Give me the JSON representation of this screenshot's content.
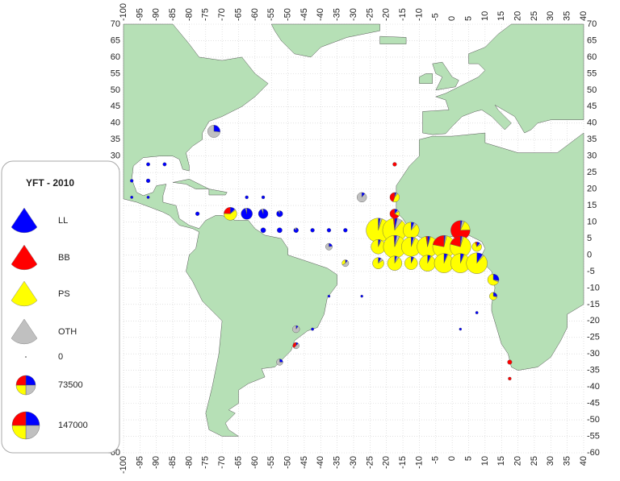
{
  "map": {
    "xticks": [
      -100,
      -95,
      -90,
      -85,
      -80,
      -75,
      -70,
      -65,
      -60,
      -55,
      -50,
      -45,
      -40,
      -35,
      -30,
      -25,
      -20,
      -15,
      -10,
      -5,
      0,
      5,
      10,
      15,
      20,
      25,
      30,
      35,
      40
    ],
    "yticks": [
      70,
      65,
      60,
      55,
      50,
      45,
      40,
      35,
      30,
      25,
      20,
      15,
      10,
      5,
      0,
      -5,
      -10,
      -15,
      -20,
      -25,
      -30,
      -35,
      -40,
      -45,
      -50,
      -55,
      -60
    ],
    "gears": [
      {
        "name": "LL",
        "color": "#0000ff"
      },
      {
        "name": "BB",
        "color": "#ff0000"
      },
      {
        "name": "PS",
        "color": "#ffff00"
      },
      {
        "name": "OTH",
        "color": "#c0c0c0"
      }
    ],
    "pies": [
      {
        "lon": -22.5,
        "lat": 7.5,
        "values": [
          3000,
          0,
          108000,
          3000
        ]
      },
      {
        "lon": -17.5,
        "lat": 7.5,
        "values": [
          4000,
          2000,
          100000,
          8000
        ]
      },
      {
        "lon": -12.5,
        "lat": 7.5,
        "values": [
          3000,
          0,
          45000,
          3000
        ]
      },
      {
        "lon": 2.5,
        "lat": 7.5,
        "values": [
          2000,
          55000,
          13000,
          3000
        ]
      },
      {
        "lon": -17.5,
        "lat": 12.5,
        "values": [
          2000,
          12000,
          3000,
          1000
        ]
      },
      {
        "lon": -17.5,
        "lat": 17.5,
        "values": [
          1000,
          8000,
          8000,
          1000
        ]
      },
      {
        "lon": -22.5,
        "lat": 2.5,
        "values": [
          2000,
          0,
          38000,
          1000
        ]
      },
      {
        "lon": -17.5,
        "lat": 2.5,
        "values": [
          3000,
          1000,
          92000,
          4000
        ]
      },
      {
        "lon": -12.5,
        "lat": 2.5,
        "values": [
          3000,
          0,
          68000,
          2000
        ]
      },
      {
        "lon": -7.5,
        "lat": 2.5,
        "values": [
          3000,
          2000,
          80000,
          1000
        ]
      },
      {
        "lon": -2.5,
        "lat": 2.5,
        "values": [
          2000,
          22000,
          74000,
          2000
        ]
      },
      {
        "lon": 2.5,
        "lat": 2.5,
        "values": [
          2000,
          18000,
          64000,
          2000
        ]
      },
      {
        "lon": 7.5,
        "lat": 2.5,
        "values": [
          2000,
          1000,
          14000,
          1000
        ]
      },
      {
        "lon": -22.5,
        "lat": -2.5,
        "values": [
          2000,
          0,
          21000,
          2000
        ]
      },
      {
        "lon": -17.5,
        "lat": -2.5,
        "values": [
          2000,
          0,
          37000,
          2000
        ]
      },
      {
        "lon": -12.5,
        "lat": -2.5,
        "values": [
          2000,
          0,
          30000,
          500
        ]
      },
      {
        "lon": -7.5,
        "lat": -2.5,
        "values": [
          3000,
          0,
          47000,
          1000
        ]
      },
      {
        "lon": -2.5,
        "lat": -2.5,
        "values": [
          4000,
          0,
          68000,
          1000
        ]
      },
      {
        "lon": 2.5,
        "lat": -2.5,
        "values": [
          4000,
          0,
          68000,
          1000
        ]
      },
      {
        "lon": 7.5,
        "lat": -2.5,
        "values": [
          8000,
          0,
          76000,
          2000
        ]
      },
      {
        "lon": 12.5,
        "lat": -7.5,
        "values": [
          7000,
          0,
          17000,
          1000
        ]
      },
      {
        "lon": 12.5,
        "lat": -12.5,
        "values": [
          3000,
          0,
          8000,
          500
        ]
      },
      {
        "lon": -67.5,
        "lat": 12.5,
        "values": [
          4000,
          8000,
          20000,
          1000
        ]
      },
      {
        "lon": -62.5,
        "lat": 12.5,
        "values": [
          24000,
          0,
          0,
          1000
        ]
      },
      {
        "lon": -57.5,
        "lat": 12.5,
        "values": [
          17000,
          0,
          0,
          1000
        ]
      },
      {
        "lon": -52.5,
        "lat": 12.5,
        "values": [
          7000,
          0,
          0,
          500
        ]
      },
      {
        "lon": -27.5,
        "lat": 17.5,
        "values": [
          2000,
          0,
          0,
          16000
        ]
      },
      {
        "lon": -72.5,
        "lat": 37.5,
        "values": [
          8000,
          0,
          0,
          22000
        ]
      },
      {
        "lon": -47.5,
        "lat": -22.5,
        "values": [
          1000,
          0,
          0,
          9000
        ]
      },
      {
        "lon": -47.5,
        "lat": -27.5,
        "values": [
          1000,
          3000,
          0,
          4000
        ]
      },
      {
        "lon": -52.5,
        "lat": -32.5,
        "values": [
          2000,
          0,
          0,
          6000
        ]
      },
      {
        "lon": -37.5,
        "lat": 2.5,
        "values": [
          2000,
          0,
          0,
          7000
        ]
      },
      {
        "lon": -32.5,
        "lat": -2.5,
        "values": [
          1000,
          0,
          3000,
          5000
        ]
      },
      {
        "lon": 17.5,
        "lat": -32.5,
        "values": [
          0,
          4000,
          0,
          0
        ]
      },
      {
        "lon": 17.5,
        "lat": -37.5,
        "values": [
          0,
          2000,
          0,
          0
        ]
      },
      {
        "lon": -17.5,
        "lat": 27.5,
        "values": [
          0,
          3000,
          0,
          0
        ]
      },
      {
        "lon": -92.5,
        "lat": 27.5,
        "values": [
          2500,
          0,
          0,
          0
        ]
      },
      {
        "lon": -87.5,
        "lat": 27.5,
        "values": [
          2500,
          0,
          0,
          0
        ]
      },
      {
        "lon": -97.5,
        "lat": 22.5,
        "values": [
          2000,
          0,
          0,
          0
        ]
      },
      {
        "lon": -92.5,
        "lat": 22.5,
        "values": [
          3000,
          0,
          0,
          0
        ]
      },
      {
        "lon": -97.5,
        "lat": 17.5,
        "values": [
          1500,
          0,
          0,
          0
        ]
      },
      {
        "lon": -92.5,
        "lat": 17.5,
        "values": [
          1500,
          0,
          0,
          0
        ]
      },
      {
        "lon": -77.5,
        "lat": 12.5,
        "values": [
          3000,
          0,
          0,
          0
        ]
      },
      {
        "lon": -57.5,
        "lat": 7.5,
        "values": [
          5000,
          0,
          0,
          0
        ]
      },
      {
        "lon": -52.5,
        "lat": 7.5,
        "values": [
          5000,
          0,
          0,
          0
        ]
      },
      {
        "lon": -47.5,
        "lat": 7.5,
        "values": [
          4000,
          0,
          0,
          500
        ]
      },
      {
        "lon": -42.5,
        "lat": 7.5,
        "values": [
          3000,
          0,
          0,
          0
        ]
      },
      {
        "lon": -37.5,
        "lat": 7.5,
        "values": [
          3000,
          0,
          0,
          0
        ]
      },
      {
        "lon": -32.5,
        "lat": 7.5,
        "values": [
          3000,
          0,
          0,
          0
        ]
      },
      {
        "lon": -62.5,
        "lat": 17.5,
        "values": [
          2000,
          0,
          0,
          0
        ]
      },
      {
        "lon": -57.5,
        "lat": 17.5,
        "values": [
          2000,
          0,
          0,
          0
        ]
      },
      {
        "lon": -42.5,
        "lat": -22.5,
        "values": [
          1500,
          0,
          0,
          0
        ]
      },
      {
        "lon": -37.5,
        "lat": -12.5,
        "values": [
          1200,
          0,
          0,
          0
        ]
      },
      {
        "lon": -27.5,
        "lat": -12.5,
        "values": [
          1200,
          0,
          0,
          0
        ]
      },
      {
        "lon": 7.5,
        "lat": -17.5,
        "values": [
          1500,
          0,
          0,
          0
        ]
      },
      {
        "lon": 2.5,
        "lat": -22.5,
        "values": [
          1200,
          0,
          0,
          0
        ]
      }
    ]
  },
  "legend": {
    "title": "YFT - 2010",
    "sizes": [
      0,
      73500,
      147000
    ]
  }
}
